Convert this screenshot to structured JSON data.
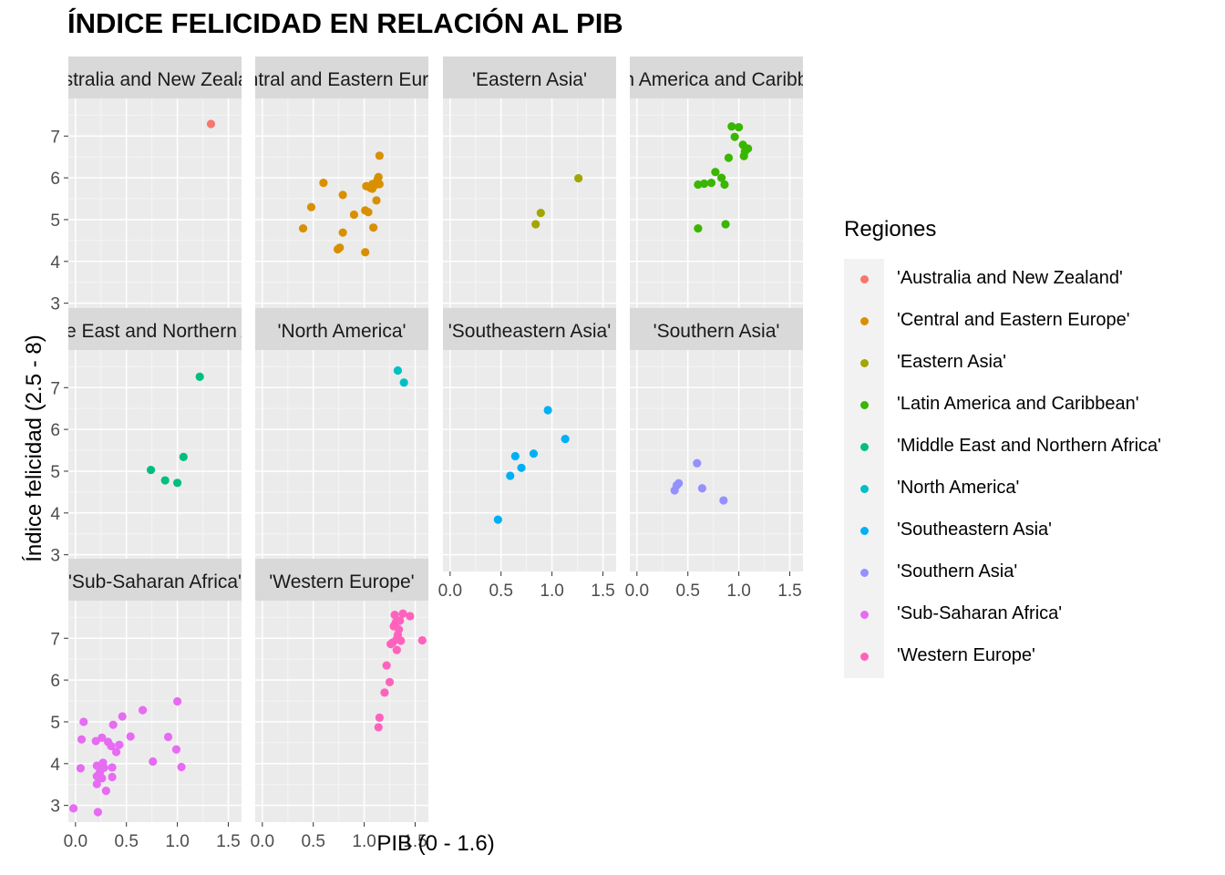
{
  "chart_data": {
    "type": "scatter",
    "title": "ÍNDICE FELICIDAD EN RELACIÓN AL PIB",
    "xlabel": "PIB (0 - 1.6)",
    "ylabel": "Índice felicidad (2.5 - 8)",
    "xlim": [
      -0.07,
      1.63
    ],
    "ylim": [
      2.6,
      7.9
    ],
    "x_ticks": [
      0.0,
      0.5,
      1.0,
      1.5
    ],
    "x_tick_labels": [
      "0.0",
      "0.5",
      "1.0",
      "1.5"
    ],
    "y_ticks": [
      3,
      4,
      5,
      6,
      7
    ],
    "y_tick_labels": [
      "3",
      "4",
      "5",
      "6",
      "7"
    ],
    "grid": true,
    "legend_title": "Regiones",
    "legend_position": "right",
    "facets": [
      {
        "label": "'Australia and New Zealand'",
        "color": "#F8766D",
        "points": [
          [
            1.33,
            7.29
          ]
        ]
      },
      {
        "label": "'Central and Eastern Europe'",
        "color": "#D89000",
        "points": [
          [
            0.4,
            4.79
          ],
          [
            0.48,
            5.3
          ],
          [
            0.6,
            5.88
          ],
          [
            0.74,
            4.29
          ],
          [
            0.76,
            4.33
          ],
          [
            0.79,
            4.69
          ],
          [
            0.79,
            5.59
          ],
          [
            0.9,
            5.12
          ],
          [
            1.01,
            4.22
          ],
          [
            1.01,
            5.22
          ],
          [
            1.02,
            5.8
          ],
          [
            1.04,
            5.18
          ],
          [
            1.06,
            5.76
          ],
          [
            1.08,
            5.74
          ],
          [
            1.08,
            5.85
          ],
          [
            1.09,
            4.81
          ],
          [
            1.11,
            5.83
          ],
          [
            1.12,
            5.46
          ],
          [
            1.13,
            5.96
          ],
          [
            1.14,
            6.02
          ],
          [
            1.15,
            5.85
          ],
          [
            1.15,
            6.53
          ]
        ]
      },
      {
        "label": "'Eastern Asia'",
        "color": "#A3A500",
        "points": [
          [
            0.84,
            4.89
          ],
          [
            0.89,
            5.16
          ],
          [
            1.26,
            5.99
          ]
        ]
      },
      {
        "label": "'Latin America and Caribbean'",
        "color": "#39B600",
        "points": [
          [
            0.6,
            4.79
          ],
          [
            0.6,
            5.84
          ],
          [
            0.66,
            5.86
          ],
          [
            0.73,
            5.88
          ],
          [
            0.77,
            6.14
          ],
          [
            0.83,
            6.0
          ],
          [
            0.86,
            5.84
          ],
          [
            0.87,
            4.89
          ],
          [
            0.9,
            6.48
          ],
          [
            0.93,
            7.23
          ],
          [
            0.96,
            6.98
          ],
          [
            1.0,
            7.21
          ],
          [
            1.04,
            6.79
          ],
          [
            1.05,
            6.52
          ],
          [
            1.06,
            6.63
          ],
          [
            1.09,
            6.7
          ]
        ]
      },
      {
        "label": "'Middle East and Northern Africa'",
        "color": "#00BF7D",
        "points": [
          [
            0.74,
            5.03
          ],
          [
            0.88,
            4.78
          ],
          [
            1.0,
            4.72
          ],
          [
            1.06,
            5.34
          ],
          [
            1.22,
            7.26
          ]
        ]
      },
      {
        "label": "'North America'",
        "color": "#00BFC4",
        "points": [
          [
            1.33,
            7.41
          ],
          [
            1.39,
            7.12
          ]
        ]
      },
      {
        "label": "'Southeastern Asia'",
        "color": "#00B0F6",
        "points": [
          [
            0.47,
            3.84
          ],
          [
            0.59,
            4.89
          ],
          [
            0.64,
            5.36
          ],
          [
            0.7,
            5.08
          ],
          [
            0.82,
            5.42
          ],
          [
            0.96,
            6.46
          ],
          [
            1.13,
            5.77
          ]
        ]
      },
      {
        "label": "'Southern Asia'",
        "color": "#9590FF",
        "points": [
          [
            0.37,
            4.54
          ],
          [
            0.39,
            4.66
          ],
          [
            0.41,
            4.71
          ],
          [
            0.59,
            5.19
          ],
          [
            0.64,
            4.59
          ],
          [
            0.85,
            4.3
          ]
        ]
      },
      {
        "label": "'Sub-Saharan Africa'",
        "color": "#E76BF3",
        "points": [
          [
            -0.02,
            2.93
          ],
          [
            0.05,
            3.89
          ],
          [
            0.06,
            4.58
          ],
          [
            0.08,
            5.0
          ],
          [
            0.2,
            4.54
          ],
          [
            0.21,
            3.95
          ],
          [
            0.21,
            3.7
          ],
          [
            0.21,
            3.51
          ],
          [
            0.22,
            2.84
          ],
          [
            0.24,
            3.8
          ],
          [
            0.26,
            3.65
          ],
          [
            0.26,
            4.62
          ],
          [
            0.27,
            4.02
          ],
          [
            0.28,
            3.9
          ],
          [
            0.3,
            3.35
          ],
          [
            0.32,
            4.52
          ],
          [
            0.35,
            4.42
          ],
          [
            0.36,
            3.68
          ],
          [
            0.36,
            3.91
          ],
          [
            0.37,
            4.93
          ],
          [
            0.4,
            4.28
          ],
          [
            0.43,
            4.45
          ],
          [
            0.46,
            5.13
          ],
          [
            0.54,
            4.65
          ],
          [
            0.66,
            5.28
          ],
          [
            0.76,
            4.05
          ],
          [
            0.91,
            4.64
          ],
          [
            0.99,
            4.34
          ],
          [
            1.0,
            5.49
          ],
          [
            1.04,
            3.92
          ]
        ]
      },
      {
        "label": "'Western Europe'",
        "color": "#FF62BC",
        "points": [
          [
            1.14,
            4.87
          ],
          [
            1.15,
            5.1
          ],
          [
            1.2,
            5.7
          ],
          [
            1.22,
            6.35
          ],
          [
            1.25,
            5.95
          ],
          [
            1.26,
            6.86
          ],
          [
            1.28,
            6.9
          ],
          [
            1.29,
            7.29
          ],
          [
            1.3,
            7.56
          ],
          [
            1.31,
            7.38
          ],
          [
            1.32,
            6.72
          ],
          [
            1.32,
            6.98
          ],
          [
            1.33,
            7.08
          ],
          [
            1.34,
            7.21
          ],
          [
            1.35,
            7.42
          ],
          [
            1.36,
            6.94
          ],
          [
            1.38,
            7.59
          ],
          [
            1.45,
            7.53
          ],
          [
            1.57,
            6.95
          ]
        ]
      }
    ]
  }
}
